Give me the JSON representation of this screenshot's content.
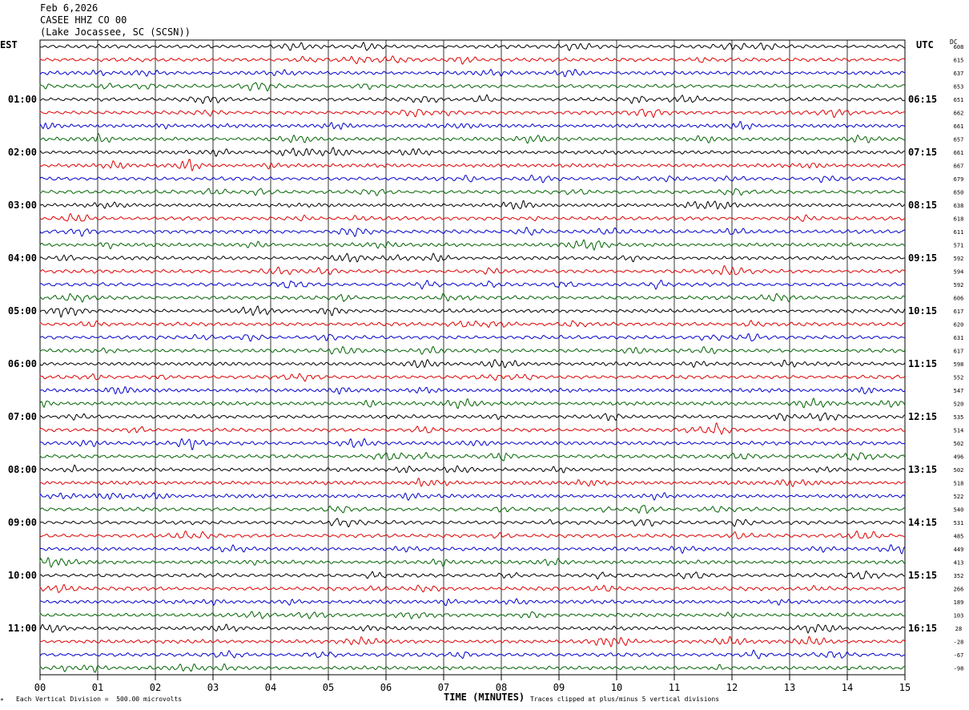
{
  "header": {
    "date": "Feb 6,2026",
    "station": "CASEE HHZ CO 00",
    "location": "(Lake Jocassee, SC (SCSN))"
  },
  "left_timezone": "EST",
  "right_timezone": "UTC",
  "dc_header": "DC",
  "footer": {
    "scale_note": "Each Vertical Division =  500.00 microvolts",
    "xlabel": "TIME (MINUTES)",
    "clip_note": "Traces clipped at plus/minus 5 vertical divisions",
    "corner_mark": "*"
  },
  "chart_data": {
    "type": "line",
    "title": "CASEE HHZ CO 00",
    "xlabel": "TIME (MINUTES)",
    "xlim": [
      0,
      15
    ],
    "x_ticks": [
      "00",
      "01",
      "02",
      "03",
      "04",
      "05",
      "06",
      "07",
      "08",
      "09",
      "10",
      "11",
      "12",
      "13",
      "14",
      "15"
    ],
    "trace_colors": [
      "#000000",
      "#dd0000",
      "#0000cc",
      "#006400"
    ],
    "rows_per_hour": 4,
    "row_count": 48,
    "est_labels": [
      "01:00",
      "02:00",
      "03:00",
      "04:00",
      "05:00",
      "06:00",
      "07:00",
      "08:00",
      "09:00",
      "10:00",
      "11:00"
    ],
    "utc_labels": [
      "06:15",
      "07:15",
      "08:15",
      "09:15",
      "10:15",
      "11:15",
      "12:15",
      "13:15",
      "14:15",
      "15:15",
      "16:15"
    ],
    "dc_offsets": [
      608,
      615,
      637,
      653,
      651,
      662,
      661,
      657,
      661,
      667,
      679,
      650,
      638,
      618,
      611,
      571,
      592,
      594,
      592,
      606,
      617,
      620,
      631,
      617,
      598,
      552,
      547,
      520,
      535,
      514,
      502,
      496,
      502,
      518,
      522,
      540,
      531,
      485,
      449,
      413,
      352,
      266,
      189,
      103,
      28,
      -28,
      -67,
      -98
    ],
    "grid": true
  }
}
